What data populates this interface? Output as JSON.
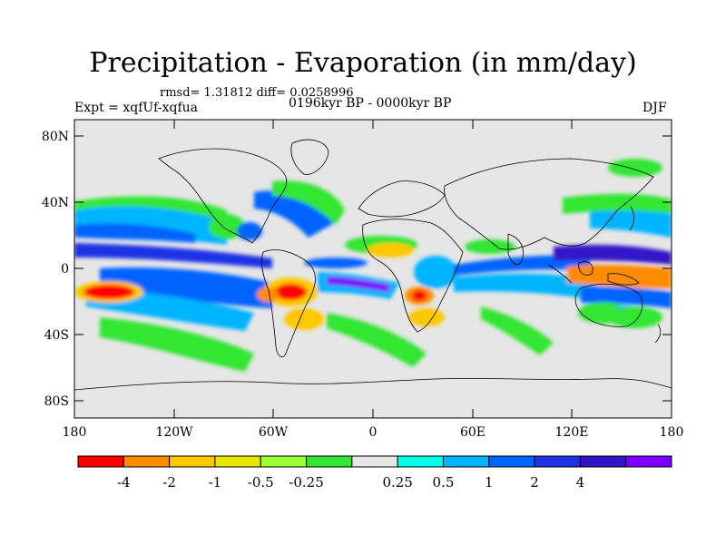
{
  "header": {
    "title": "Precipitation - Evaporation (in mm/day)",
    "stats": "rmsd= 1.31812 diff= 0.0258996",
    "experiment": "Expt = xqfUf-xqfua",
    "period": "0196kyr BP - 0000kyr BP",
    "season": "DJF"
  },
  "map": {
    "lat_labels": [
      "80N",
      "40N",
      "0",
      "40S",
      "80S"
    ],
    "lon_labels": [
      "180",
      "120W",
      "60W",
      "0",
      "60E",
      "120E",
      "180"
    ],
    "background_color": "#e6e6e6",
    "coastline_color": "#000000"
  },
  "legend": {
    "colors": [
      "#ff0000",
      "#ff8c00",
      "#ffc800",
      "#e6e600",
      "#99ff33",
      "#33e633",
      "#e6e6e6",
      "#00ffe6",
      "#00b4ff",
      "#0064ff",
      "#1e32e6",
      "#3214c8",
      "#7d00ff"
    ],
    "labels": [
      "-4",
      "-2",
      "-1",
      "-0.5",
      "-0.25",
      "0.25",
      "0.5",
      "1",
      "2",
      "4"
    ]
  }
}
